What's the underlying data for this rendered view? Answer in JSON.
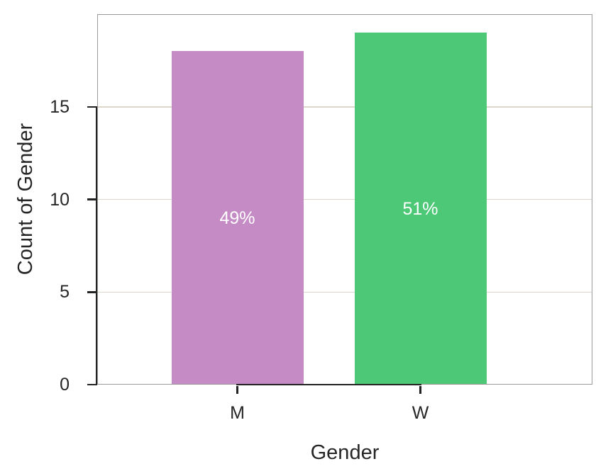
{
  "chart_data": {
    "type": "bar",
    "xlabel": "Gender",
    "ylabel": "Count of Gender",
    "categories": [
      "M",
      "W"
    ],
    "values": [
      18,
      19
    ],
    "bar_labels": [
      "49%",
      "51%"
    ],
    "bar_colors": [
      "#c58bc5",
      "#4dc877"
    ],
    "bar_label_color": "#ffffff",
    "ylim": [
      0,
      20
    ],
    "yticks": [
      0,
      5,
      10,
      15
    ],
    "grid": "horizontal-only",
    "gridline_color": "#ddd6ca",
    "frame_color": "#9a9a9a",
    "axis_color": "#232323",
    "text_color": "#262626",
    "legend": "none"
  }
}
